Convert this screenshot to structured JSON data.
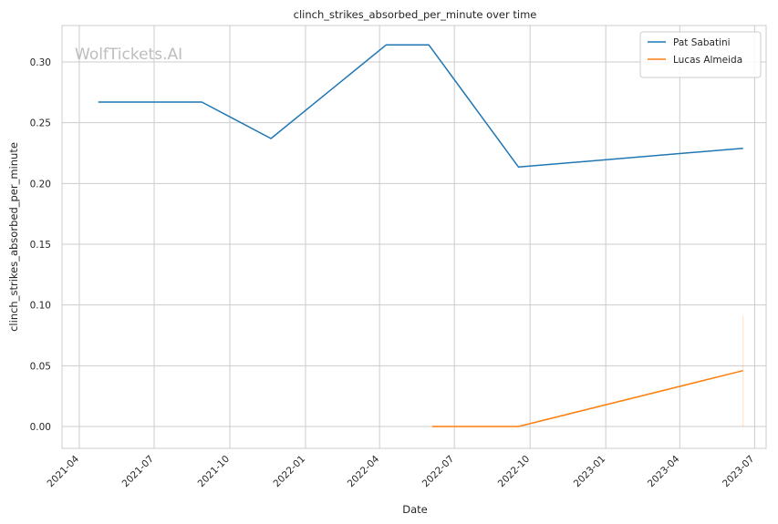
{
  "chart_data": {
    "type": "line",
    "title": "clinch_strikes_absorbed_per_minute over time",
    "xlabel": "Date",
    "ylabel": "clinch_strikes_absorbed_per_minute",
    "watermark": "WolfTickets.AI",
    "xlim": [
      "2021-03-11",
      "2023-07-15"
    ],
    "ylim": [
      -0.018,
      0.33
    ],
    "x_ticks": [
      "2021-04-01",
      "2021-07-01",
      "2021-10-01",
      "2022-01-01",
      "2022-04-01",
      "2022-07-01",
      "2022-10-01",
      "2023-01-01",
      "2023-04-01",
      "2023-07-01"
    ],
    "x_tick_labels": [
      "2021-04",
      "2021-07",
      "2021-10",
      "2022-01",
      "2022-04",
      "2022-07",
      "2022-10",
      "2023-01",
      "2023-04",
      "2023-07"
    ],
    "y_ticks": [
      0.0,
      0.05,
      0.1,
      0.15,
      0.2,
      0.25,
      0.3
    ],
    "y_tick_labels": [
      "0.00",
      "0.05",
      "0.10",
      "0.15",
      "0.20",
      "0.25",
      "0.30"
    ],
    "grid": true,
    "legend_position": "top-right",
    "series": [
      {
        "name": "Pat Sabatini",
        "color": "#1f77b4",
        "points": [
          {
            "x": "2021-04-24",
            "y": 0.267
          },
          {
            "x": "2021-08-28",
            "y": 0.267
          },
          {
            "x": "2021-11-20",
            "y": 0.237
          },
          {
            "x": "2022-04-09",
            "y": 0.314
          },
          {
            "x": "2022-05-31",
            "y": 0.314
          },
          {
            "x": "2022-09-17",
            "y": 0.2135
          },
          {
            "x": "2023-06-17",
            "y": 0.229
          }
        ]
      },
      {
        "name": "Lucas Almeida",
        "color": "#ff7f0e",
        "points": [
          {
            "x": "2022-06-04",
            "y": 0.0
          },
          {
            "x": "2022-09-17",
            "y": 0.0
          },
          {
            "x": "2023-06-17",
            "y": 0.046
          }
        ],
        "band": {
          "x": "2023-06-17",
          "low": 0.0,
          "high": 0.091
        }
      }
    ]
  }
}
